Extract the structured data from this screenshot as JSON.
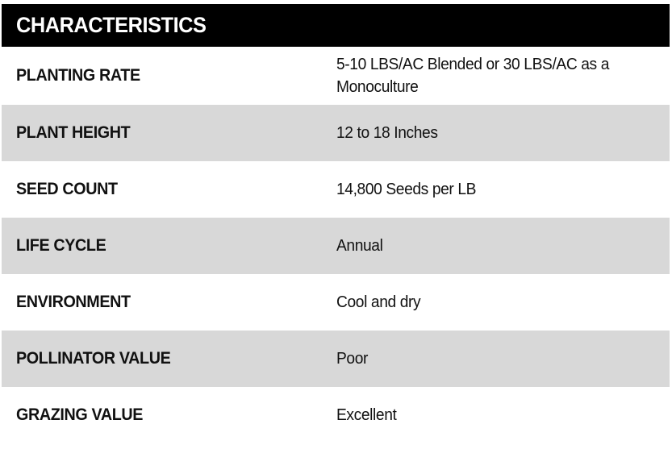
{
  "table": {
    "title": "CHARACTERISTICS",
    "rows": [
      {
        "label": "PLANTING RATE",
        "value": "5-10 LBS/AC Blended or 30 LBS/AC as a Monoculture"
      },
      {
        "label": "PLANT HEIGHT",
        "value": "12 to 18 Inches"
      },
      {
        "label": "SEED COUNT",
        "value": "14,800 Seeds per LB"
      },
      {
        "label": "LIFE CYCLE",
        "value": "Annual"
      },
      {
        "label": "ENVIRONMENT",
        "value": "Cool and dry"
      },
      {
        "label": "POLLINATOR VALUE",
        "value": "Poor"
      },
      {
        "label": "GRAZING VALUE",
        "value": "Excellent"
      }
    ],
    "colors": {
      "header_bg": "#000000",
      "header_text": "#ffffff",
      "row_alt_bg": "#d8d8d8",
      "row_bg": "#ffffff",
      "text": "#111111"
    }
  }
}
